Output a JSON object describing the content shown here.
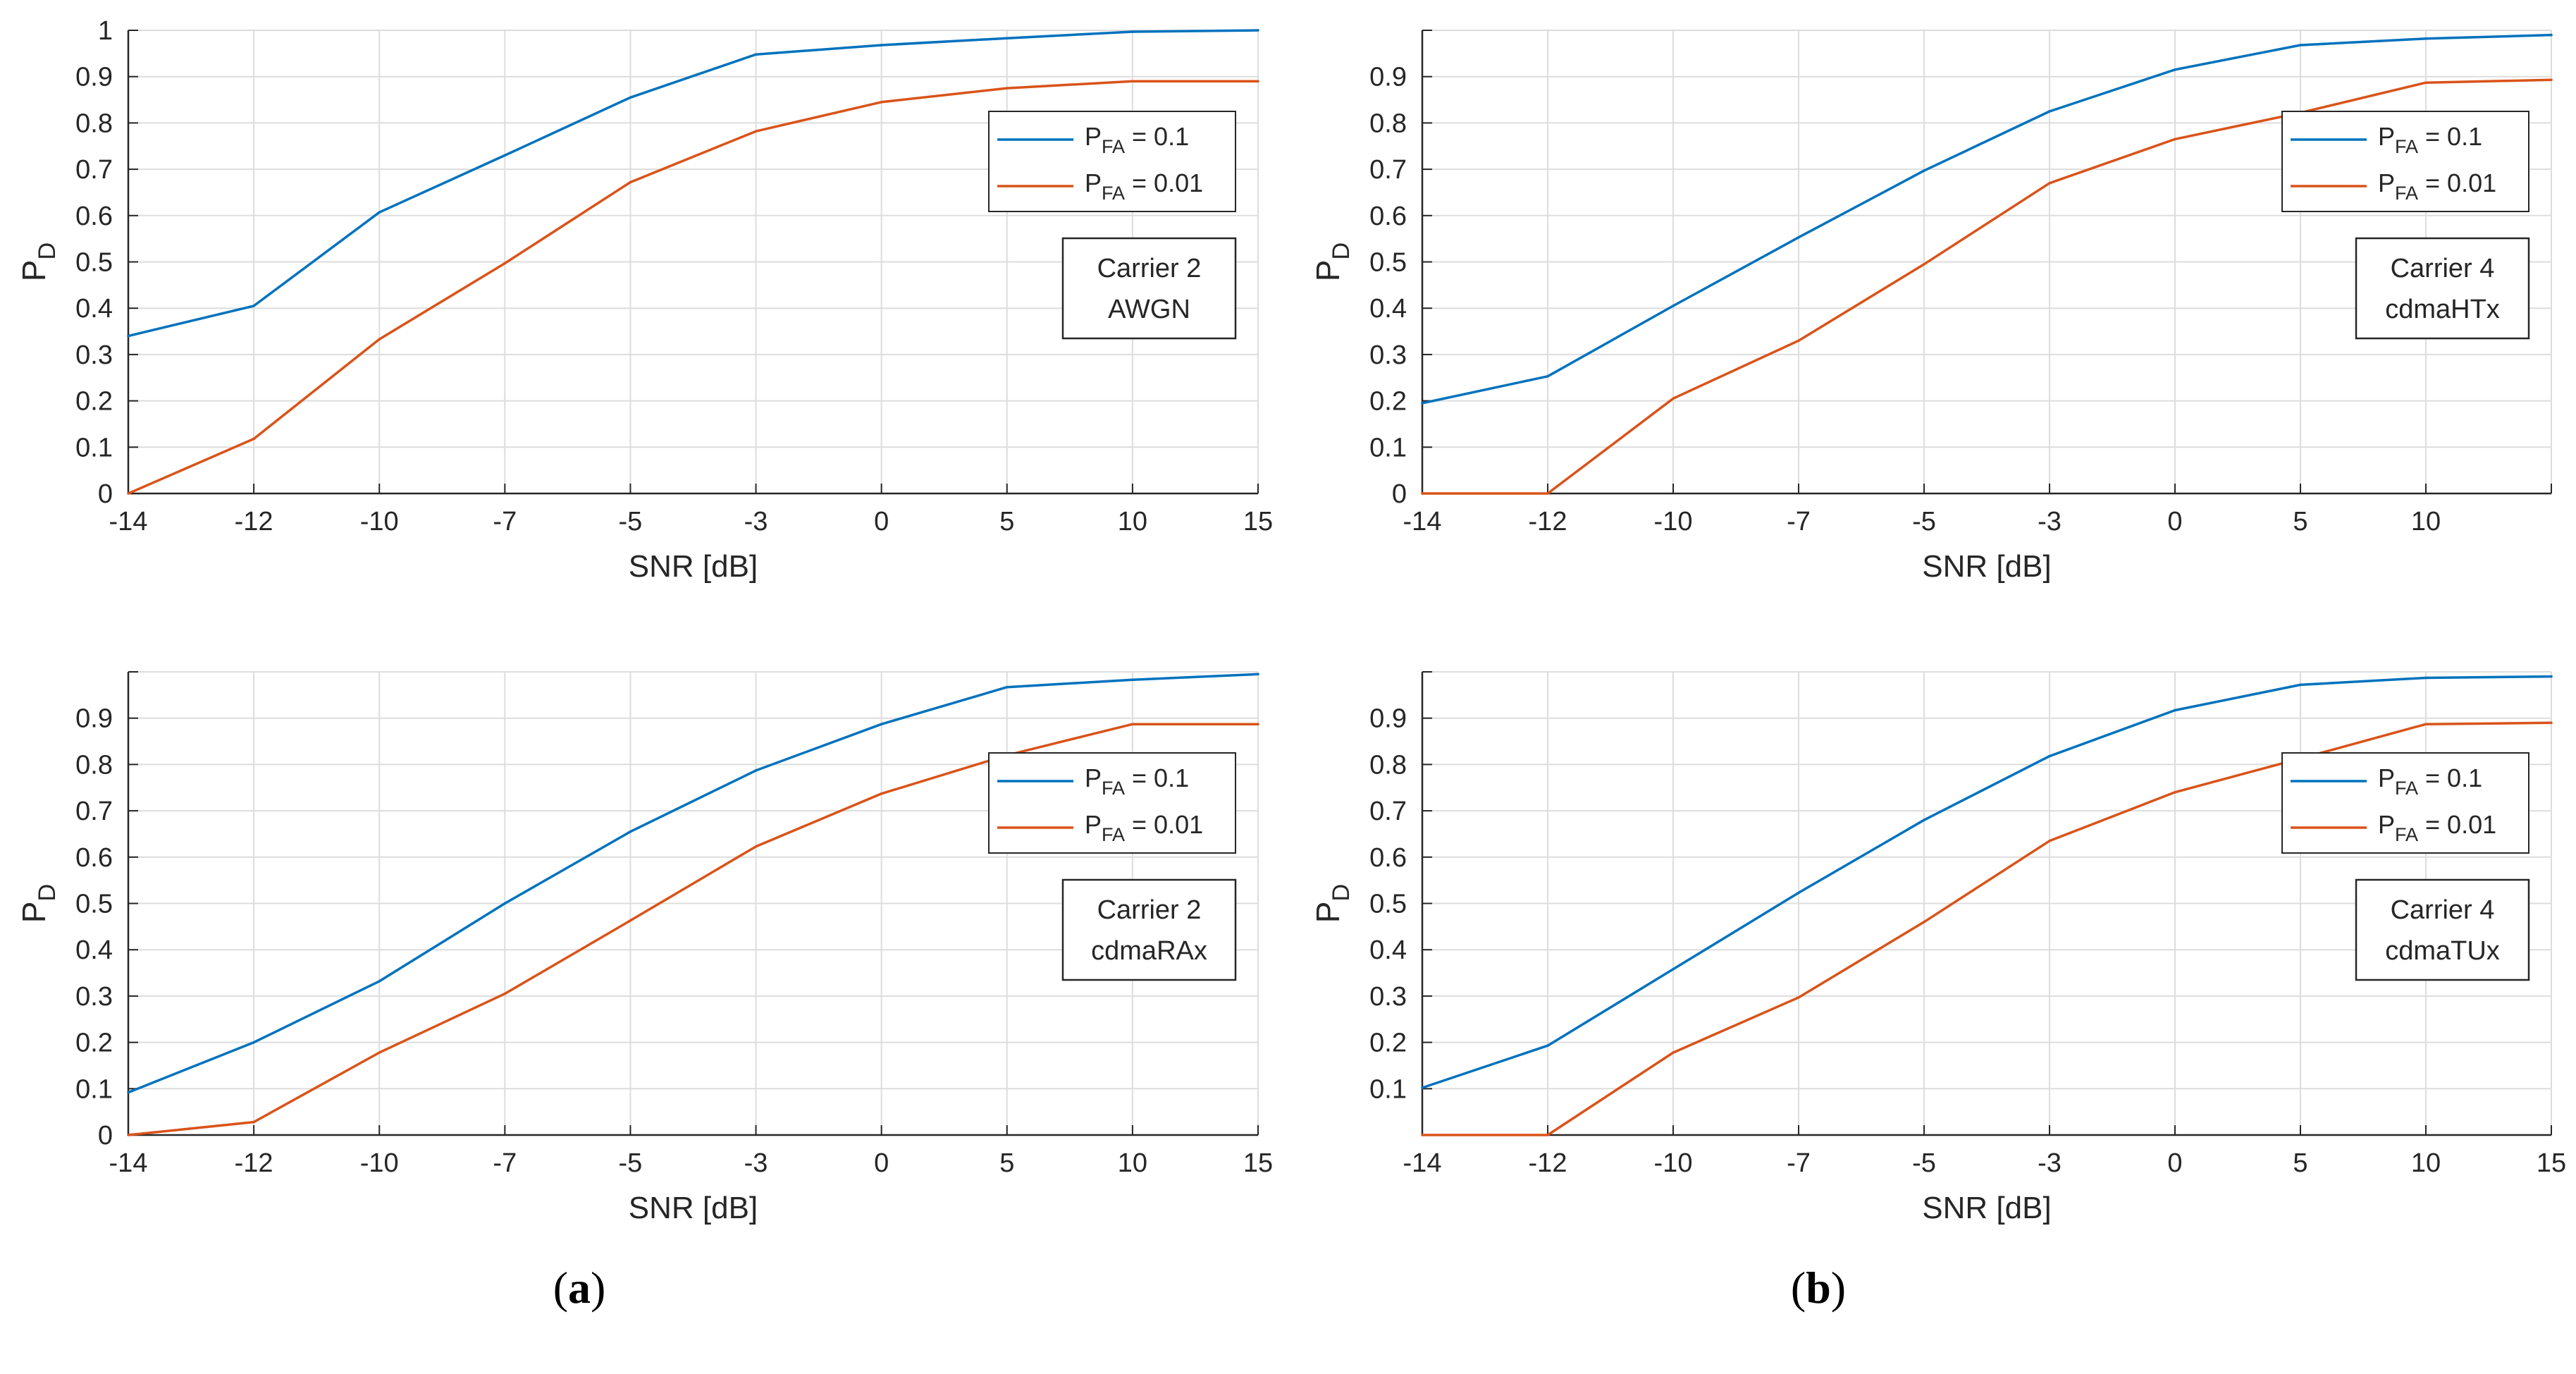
{
  "chart_data": [
    {
      "type": "line",
      "panel": "a",
      "title": "",
      "xlabel": "SNR [dB]",
      "ylabel": "P_D",
      "ylabel_main": "P",
      "ylabel_sub": "D",
      "x_ticks": [
        "-14",
        "-12",
        "-10",
        "-7",
        "-5",
        "-3",
        "0",
        "5",
        "10",
        "15"
      ],
      "y_ticks": [
        "0",
        "0.1",
        "0.2",
        "0.3",
        "0.4",
        "0.5",
        "0.6",
        "0.7",
        "0.8",
        "0.9",
        "1"
      ],
      "ylim": [
        0,
        1
      ],
      "x_scale": "categorical (equally spaced ticks)",
      "grid": true,
      "legend_position": "upper-right",
      "annotation": [
        "Carrier 2",
        "AWGN"
      ],
      "series": [
        {
          "name": "P_FA = 0.1",
          "label_main": "P",
          "label_sub": "FA",
          "label_rest": " = 0.1",
          "color": "#0072BD",
          "x": [
            "-14",
            "-12",
            "-10",
            "-7",
            "-5",
            "-3",
            "0",
            "5",
            "10",
            "15"
          ],
          "values": [
            0.34,
            0.405,
            0.607,
            0.73,
            0.855,
            0.948,
            0.968,
            0.983,
            0.997,
            1.0
          ]
        },
        {
          "name": "P_FA = 0.01",
          "label_main": "P",
          "label_sub": "FA",
          "label_rest": " = 0.01",
          "color": "#D95319",
          "x": [
            "-14",
            "-12",
            "-10",
            "-7",
            "-5",
            "-3",
            "0",
            "5",
            "10",
            "15"
          ],
          "values": [
            0.0,
            0.118,
            0.333,
            0.497,
            0.672,
            0.782,
            0.845,
            0.875,
            0.89,
            0.89
          ]
        }
      ]
    },
    {
      "type": "line",
      "panel": "b",
      "title": "",
      "xlabel": "SNR [dB]",
      "ylabel": "P_D",
      "ylabel_main": "P",
      "ylabel_sub": "D",
      "x_ticks": [
        "-14",
        "-12",
        "-10",
        "-7",
        "-5",
        "-3",
        "0",
        "5",
        "10",
        ""
      ],
      "y_ticks": [
        "0",
        "0.1",
        "0.2",
        "0.3",
        "0.4",
        "0.5",
        "0.6",
        "0.7",
        "0.8",
        "0.9",
        ""
      ],
      "ylim": [
        0,
        1
      ],
      "x_scale": "categorical (equally spaced ticks)",
      "grid": true,
      "legend_position": "upper-right",
      "annotation": [
        "Carrier 4",
        "cdmaHTx"
      ],
      "series": [
        {
          "name": "P_FA = 0.1",
          "label_main": "P",
          "label_sub": "FA",
          "label_rest": " = 0.1",
          "color": "#0072BD",
          "x": [
            "-14",
            "-12",
            "-10",
            "-7",
            "-5",
            "-3",
            "0",
            "5",
            "10",
            "15"
          ],
          "values": [
            0.195,
            0.253,
            0.405,
            0.553,
            0.697,
            0.825,
            0.915,
            0.968,
            0.982,
            0.99
          ]
        },
        {
          "name": "P_FA = 0.01",
          "label_main": "P",
          "label_sub": "FA",
          "label_rest": " = 0.01",
          "color": "#D95319",
          "x": [
            "-14",
            "-12",
            "-10",
            "-7",
            "-5",
            "-3",
            "0",
            "5",
            "10",
            "15"
          ],
          "values": [
            0.0,
            0.0,
            0.205,
            0.33,
            0.495,
            0.67,
            0.765,
            0.822,
            0.887,
            0.893
          ]
        }
      ]
    },
    {
      "type": "line",
      "panel": "a",
      "title": "",
      "xlabel": "SNR [dB]",
      "ylabel": "P_D",
      "ylabel_main": "P",
      "ylabel_sub": "D",
      "x_ticks": [
        "-14",
        "-12",
        "-10",
        "-7",
        "-5",
        "-3",
        "0",
        "5",
        "10",
        "15"
      ],
      "y_ticks": [
        "0",
        "0.1",
        "0.2",
        "0.3",
        "0.4",
        "0.5",
        "0.6",
        "0.7",
        "0.8",
        "0.9",
        ""
      ],
      "ylim": [
        0,
        1
      ],
      "x_scale": "categorical (equally spaced ticks)",
      "grid": true,
      "legend_position": "upper-right",
      "annotation": [
        "Carrier 2",
        "cdmaRAx"
      ],
      "series": [
        {
          "name": "P_FA = 0.1",
          "label_main": "P",
          "label_sub": "FA",
          "label_rest": " = 0.1",
          "color": "#0072BD",
          "x": [
            "-14",
            "-12",
            "-10",
            "-7",
            "-5",
            "-3",
            "0",
            "5",
            "10",
            "15"
          ],
          "values": [
            0.092,
            0.2,
            0.332,
            0.5,
            0.655,
            0.787,
            0.887,
            0.967,
            0.983,
            0.995
          ]
        },
        {
          "name": "P_FA = 0.01",
          "label_main": "P",
          "label_sub": "FA",
          "label_rest": " = 0.01",
          "color": "#D95319",
          "x": [
            "-14",
            "-12",
            "-10",
            "-7",
            "-5",
            "-3",
            "0",
            "5",
            "10",
            "15"
          ],
          "values": [
            0.0,
            0.028,
            0.178,
            0.305,
            0.463,
            0.623,
            0.737,
            0.82,
            0.887,
            0.887
          ]
        }
      ]
    },
    {
      "type": "line",
      "panel": "b",
      "title": "",
      "xlabel": "SNR [dB]",
      "ylabel": "P_D",
      "ylabel_main": "P",
      "ylabel_sub": "D",
      "x_ticks": [
        "-14",
        "-12",
        "-10",
        "-7",
        "-5",
        "-3",
        "0",
        "5",
        "10",
        "15"
      ],
      "y_ticks": [
        "",
        "0.1",
        "0.2",
        "0.3",
        "0.4",
        "0.5",
        "0.6",
        "0.7",
        "0.8",
        "0.9",
        ""
      ],
      "ylim": [
        0,
        1
      ],
      "x_scale": "categorical (equally spaced ticks)",
      "grid": true,
      "legend_position": "upper-right",
      "annotation": [
        "Carrier 4",
        "cdmaTUx"
      ],
      "series": [
        {
          "name": "P_FA = 0.1",
          "label_main": "P",
          "label_sub": "FA",
          "label_rest": " = 0.1",
          "color": "#0072BD",
          "x": [
            "-14",
            "-12",
            "-10",
            "-7",
            "-5",
            "-3",
            "0",
            "5",
            "10",
            "15"
          ],
          "values": [
            0.102,
            0.193,
            0.358,
            0.523,
            0.68,
            0.818,
            0.917,
            0.972,
            0.987,
            0.99
          ]
        },
        {
          "name": "P_FA = 0.01",
          "label_main": "P",
          "label_sub": "FA",
          "label_rest": " = 0.01",
          "color": "#D95319",
          "x": [
            "-14",
            "-12",
            "-10",
            "-7",
            "-5",
            "-3",
            "0",
            "5",
            "10",
            "15"
          ],
          "values": [
            0.0,
            0.0,
            0.178,
            0.297,
            0.46,
            0.635,
            0.74,
            0.813,
            0.887,
            0.89
          ]
        }
      ]
    }
  ],
  "captions": {
    "a": "(a)",
    "b": "(b)",
    "a_letter": "a",
    "b_letter": "b"
  }
}
